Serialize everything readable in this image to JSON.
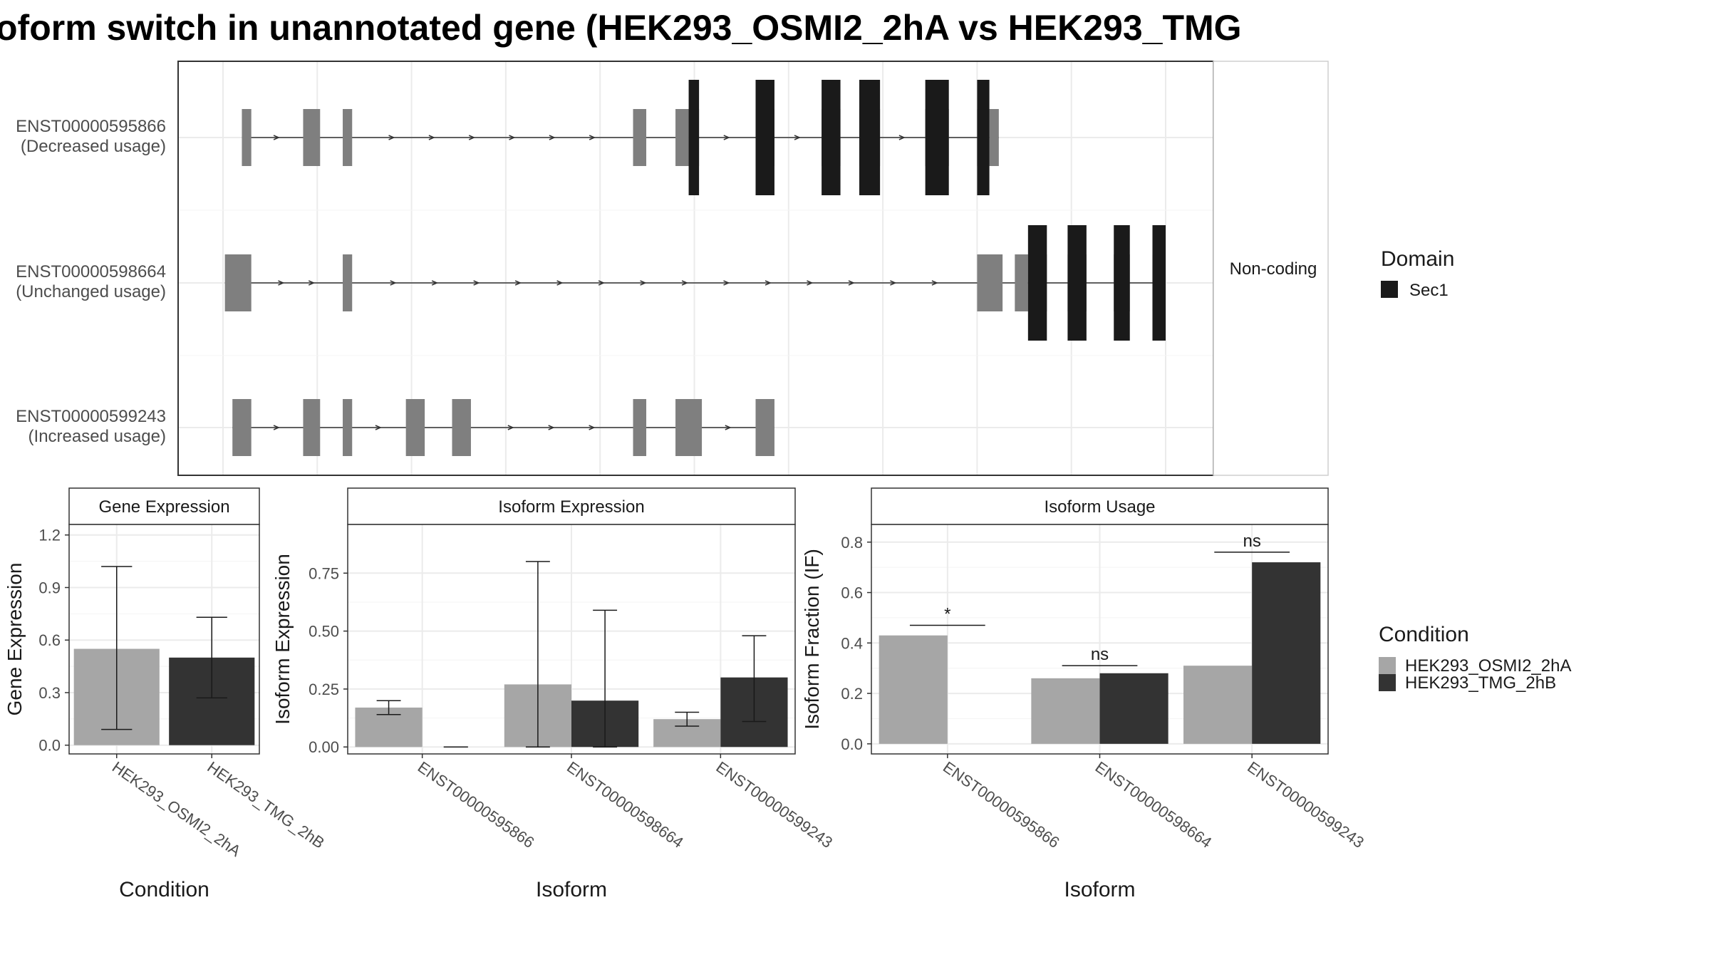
{
  "title": "oform switch in unannotated gene (HEK293_OSMI2_2hA vs HEK293_TMG",
  "colors": {
    "condA": "#a6a6a6",
    "condB": "#333333",
    "exon": "#7f7f7f",
    "domain": "#1a1a1a",
    "grid": "#ebebeb"
  },
  "chart_data": [
    {
      "type": "gene-structure",
      "facet_label": "Non-coding",
      "x_range": [
        0,
        100
      ],
      "transcripts": [
        {
          "id": "ENST00000595866",
          "usage": "(Decreased usage)",
          "exons": [
            [
              2,
              3
            ],
            [
              8.5,
              10.3
            ],
            [
              12.7,
              13.7
            ],
            [
              43.5,
              44.9
            ],
            [
              48,
              49.4
            ],
            [
              49.4,
              50.5
            ],
            [
              56.5,
              58.5
            ],
            [
              63.5,
              65.5
            ],
            [
              67.5,
              69.7
            ],
            [
              74.5,
              77
            ],
            [
              80,
              81.3
            ],
            [
              81.3,
              82.3
            ]
          ],
          "domains": [
            [
              49.4,
              50.5
            ],
            [
              56.5,
              58.5
            ],
            [
              63.5,
              65.5
            ],
            [
              67.5,
              69.7
            ],
            [
              74.5,
              77
            ],
            [
              80,
              81.3
            ]
          ]
        },
        {
          "id": "ENST00000598664",
          "usage": "(Unchanged usage)",
          "exons": [
            [
              0.2,
              3
            ],
            [
              12.7,
              13.7
            ],
            [
              80,
              82.7
            ],
            [
              84,
              85.4
            ],
            [
              85.4,
              87.4
            ],
            [
              89.6,
              91.6
            ],
            [
              94.5,
              96.2
            ],
            [
              98.6,
              100
            ]
          ],
          "domains": [
            [
              85.4,
              87.4
            ],
            [
              89.6,
              91.6
            ],
            [
              94.5,
              96.2
            ],
            [
              98.6,
              100
            ]
          ]
        },
        {
          "id": "ENST00000599243",
          "usage": "(Increased usage)",
          "exons": [
            [
              1,
              3
            ],
            [
              8.5,
              10.3
            ],
            [
              12.7,
              13.7
            ],
            [
              19.4,
              21.4
            ],
            [
              24.3,
              26.3
            ],
            [
              43.5,
              44.9
            ],
            [
              48,
              50.8
            ],
            [
              56.5,
              58.5
            ]
          ],
          "domains": []
        }
      ],
      "legend": {
        "title": "Domain",
        "items": [
          "Sec1"
        ]
      }
    },
    {
      "type": "bar",
      "facet_label": "Gene Expression",
      "xlabel": "Condition",
      "ylabel": "Gene Expression",
      "ylim": [
        -0.05,
        1.26
      ],
      "yticks": [
        "0.0",
        "0.3",
        "0.6",
        "0.9",
        "1.2"
      ],
      "categories": [
        "HEK293_OSMI2_2hA",
        "HEK293_TMG_2hB"
      ],
      "series": [
        {
          "values": [
            0.55,
            0.5
          ],
          "error_low": [
            0.09,
            0.27
          ],
          "error_high": [
            1.02,
            0.73
          ]
        }
      ]
    },
    {
      "type": "bar",
      "facet_label": "Isoform Expression",
      "xlabel": "Isoform",
      "ylabel": "Isoform Expression",
      "ylim": [
        -0.03,
        0.96
      ],
      "yticks": [
        "0.00",
        "0.25",
        "0.50",
        "0.75"
      ],
      "categories": [
        "ENST00000595866",
        "ENST00000598664",
        "ENST00000599243"
      ],
      "series": [
        {
          "name": "HEK293_OSMI2_2hA",
          "values": [
            0.17,
            0.27,
            0.12
          ],
          "error_low": [
            0.14,
            0.0,
            0.09
          ],
          "error_high": [
            0.2,
            0.8,
            0.15
          ]
        },
        {
          "name": "HEK293_TMG_2hB",
          "values": [
            0.0,
            0.2,
            0.3
          ],
          "error_low": [
            0.0,
            0.0,
            0.11
          ],
          "error_high": [
            0.0,
            0.59,
            0.48
          ]
        }
      ]
    },
    {
      "type": "bar",
      "facet_label": "Isoform Usage",
      "xlabel": "Isoform",
      "ylabel": "Isoform Fraction (IF)",
      "ylim": [
        -0.04,
        0.87
      ],
      "yticks": [
        "0.0",
        "0.2",
        "0.4",
        "0.6",
        "0.8"
      ],
      "categories": [
        "ENST00000595866",
        "ENST00000598664",
        "ENST00000599243"
      ],
      "series": [
        {
          "name": "HEK293_OSMI2_2hA",
          "values": [
            0.43,
            0.26,
            0.31
          ]
        },
        {
          "name": "HEK293_TMG_2hB",
          "values": [
            0.0,
            0.28,
            0.72
          ]
        }
      ],
      "significance": [
        {
          "label": "*",
          "y": 0.47
        },
        {
          "label": "ns",
          "y": 0.31
        },
        {
          "label": "ns",
          "y": 0.76
        }
      ]
    }
  ],
  "condition_legend": {
    "title": "Condition",
    "items": [
      "HEK293_OSMI2_2hA",
      "HEK293_TMG_2hB"
    ]
  }
}
